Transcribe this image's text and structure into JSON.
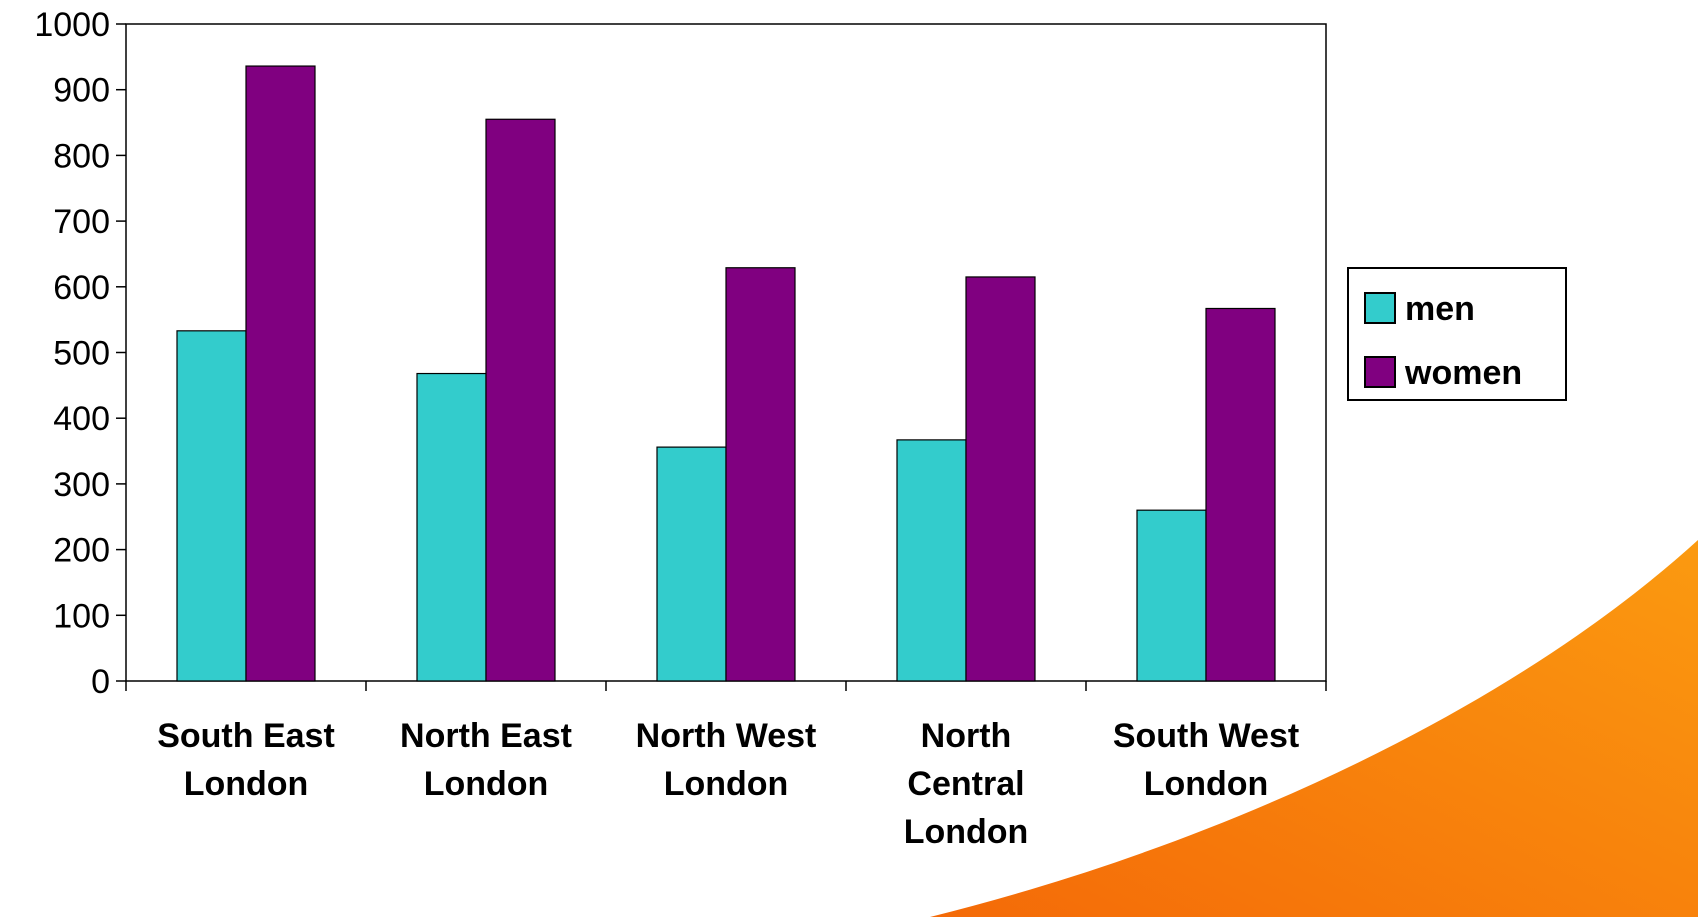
{
  "chart_data": {
    "type": "bar",
    "categories": [
      [
        "South East",
        "London"
      ],
      [
        "North East",
        "London"
      ],
      [
        "North West",
        "London"
      ],
      [
        "North",
        "Central",
        "London"
      ],
      [
        "South West",
        "London"
      ]
    ],
    "series": [
      {
        "name": "men",
        "color": "#33CCCC",
        "values": [
          533,
          468,
          356,
          367,
          260
        ]
      },
      {
        "name": "women",
        "color": "#800080",
        "values": [
          936,
          855,
          629,
          615,
          567
        ]
      }
    ],
    "ylim": [
      0,
      1000
    ],
    "yticks": [
      "0",
      "100",
      "200",
      "300",
      "400",
      "500",
      "600",
      "700",
      "800",
      "900",
      "1000"
    ],
    "grid": false,
    "legend_position": "right"
  },
  "decoration": {
    "swoosh_color": "#F47A0C"
  }
}
